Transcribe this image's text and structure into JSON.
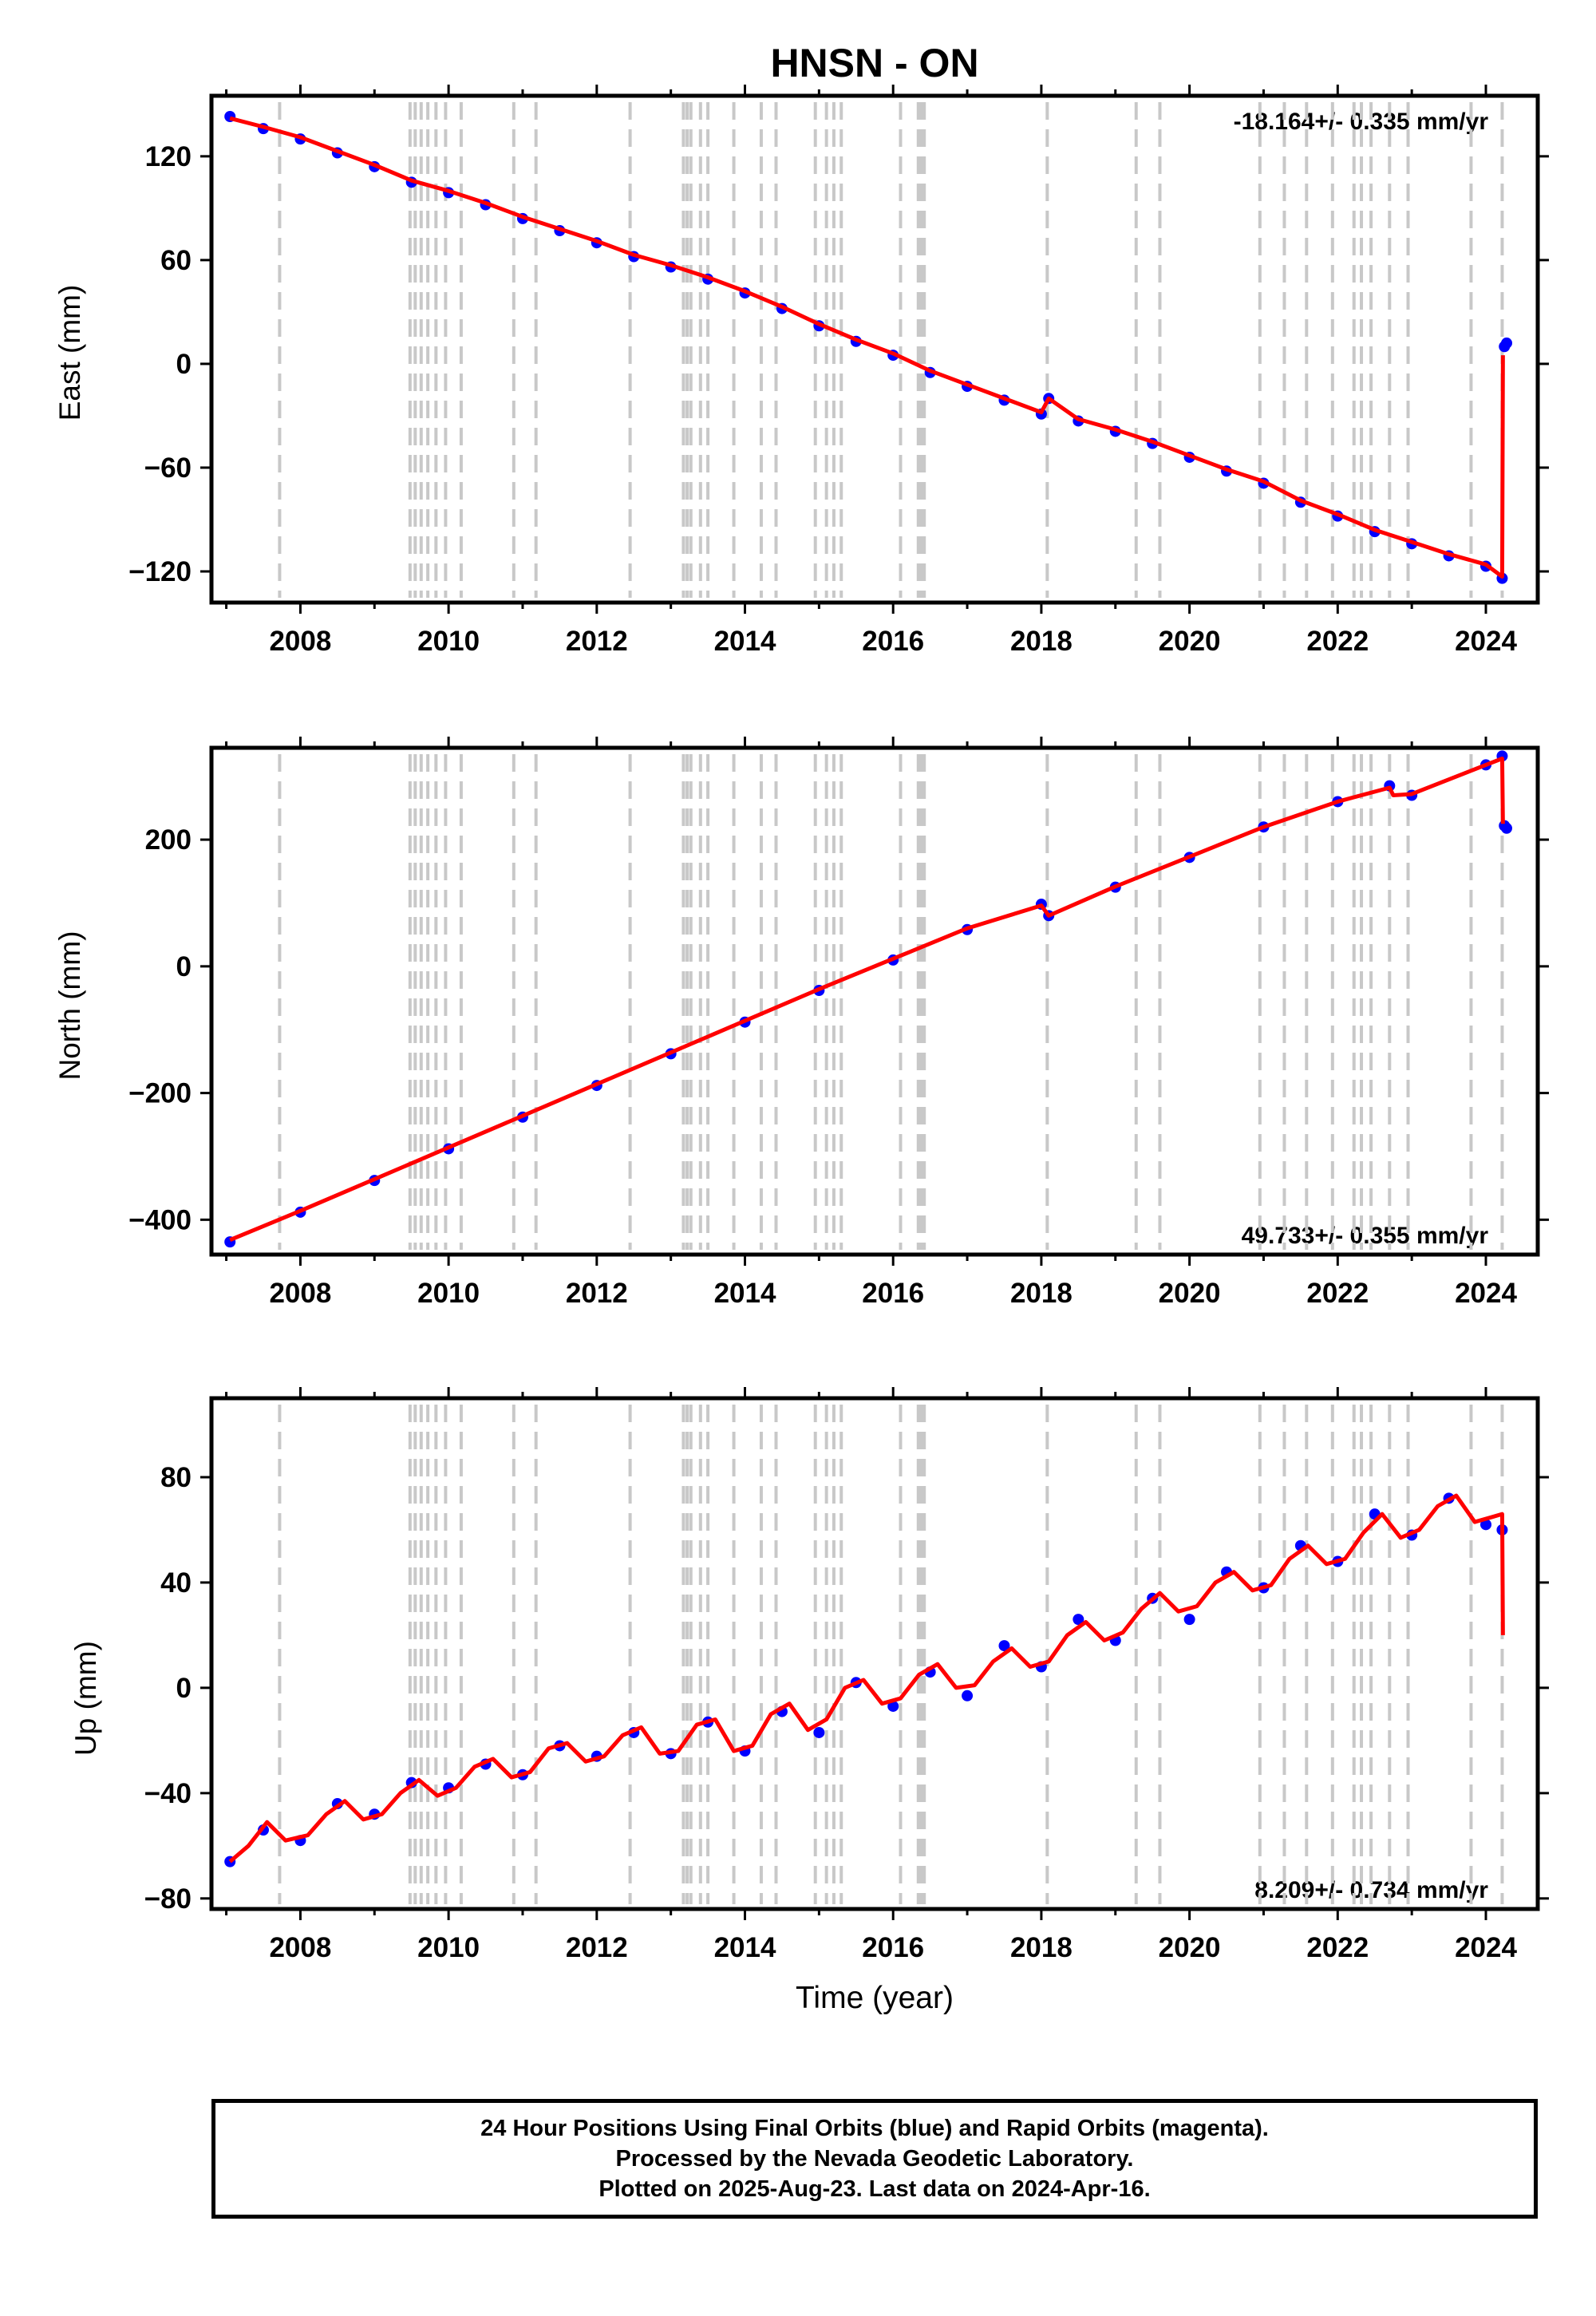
{
  "figure": {
    "title": "HNSN - ON",
    "xlabel": "Time (year)"
  },
  "footer": {
    "lines": [
      "24 Hour Positions Using Final Orbits (blue) and Rapid Orbits (magenta).",
      "Processed by the Nevada Geodetic Laboratory.",
      "Plotted on 2025-Aug-23. Last data on 2024-Apr-16."
    ]
  },
  "colors": {
    "points": "#0000ff",
    "model": "#ff0000",
    "event_lines": "#c8c8c8"
  },
  "chart_data": [
    {
      "type": "scatter",
      "title": "HNSN - ON",
      "xlabel": "",
      "ylabel": "East (mm)",
      "xlim": [
        2006.8,
        2024.7
      ],
      "ylim": [
        -138,
        155
      ],
      "xticks": [
        2008,
        2010,
        2012,
        2014,
        2016,
        2018,
        2020,
        2022,
        2024
      ],
      "yticks": [
        -120,
        -60,
        0,
        60,
        120
      ],
      "ytick_labels": [
        "−120",
        "−60",
        "0",
        "60",
        "120"
      ],
      "rate_label": "-18.164+/- 0.335 mm/yr",
      "rate_position": "top-right",
      "grid": false,
      "series": [
        {
          "kind": "points",
          "x": [
            2007.05,
            2007.5,
            2008.0,
            2008.5,
            2009.0,
            2009.5,
            2010.0,
            2010.5,
            2011.0,
            2011.5,
            2012.0,
            2012.5,
            2013.0,
            2013.5,
            2014.0,
            2014.5,
            2015.0,
            2015.5,
            2016.0,
            2016.5,
            2017.0,
            2017.5,
            2018.0,
            2018.1,
            2018.5,
            2019.0,
            2019.5,
            2020.0,
            2020.5,
            2021.0,
            2021.5,
            2022.0,
            2022.5,
            2023.0,
            2023.5,
            2024.0,
            2024.22,
            2024.25,
            2024.28
          ],
          "y": [
            143,
            136,
            130,
            122,
            114,
            105,
            99,
            92,
            84,
            77,
            70,
            62,
            56,
            49,
            41,
            32,
            22,
            13,
            5,
            -5,
            -13,
            -21,
            -29,
            -20,
            -33,
            -39,
            -46,
            -54,
            -62,
            -69,
            -80,
            -88,
            -97,
            -104,
            -111,
            -117,
            -124,
            10,
            12
          ]
        },
        {
          "kind": "model",
          "x": [
            2007.05,
            2007.5,
            2008.0,
            2008.5,
            2009.0,
            2009.5,
            2010.0,
            2010.5,
            2011.0,
            2011.5,
            2012.0,
            2012.5,
            2013.0,
            2013.5,
            2014.0,
            2014.5,
            2015.0,
            2015.5,
            2016.0,
            2016.5,
            2017.0,
            2017.5,
            2018.0,
            2018.1,
            2018.5,
            2019.0,
            2019.5,
            2020.0,
            2020.5,
            2021.0,
            2021.5,
            2022.0,
            2022.5,
            2023.0,
            2023.5,
            2024.0,
            2024.22,
            2024.23
          ],
          "y": [
            142,
            137,
            131,
            123,
            115,
            106,
            100,
            93,
            85,
            78,
            71,
            63,
            57,
            50,
            42,
            33,
            23,
            14,
            6,
            -4,
            -12,
            -20,
            -28,
            -20,
            -32,
            -38,
            -45,
            -53,
            -61,
            -68,
            -79,
            -87,
            -96,
            -103,
            -110,
            -116,
            -123,
            5
          ]
        }
      ]
    },
    {
      "type": "scatter",
      "xlabel": "",
      "ylabel": "North (mm)",
      "xlim": [
        2006.8,
        2024.7
      ],
      "ylim": [
        -455,
        345
      ],
      "xticks": [
        2008,
        2010,
        2012,
        2014,
        2016,
        2018,
        2020,
        2022,
        2024
      ],
      "yticks": [
        -400,
        -200,
        0,
        200
      ],
      "ytick_labels": [
        "−400",
        "−200",
        "0",
        "200"
      ],
      "rate_label": "49.733+/- 0.355 mm/yr",
      "rate_position": "bottom-right",
      "grid": false,
      "series": [
        {
          "kind": "points",
          "x": [
            2007.05,
            2008.0,
            2009.0,
            2010.0,
            2011.0,
            2012.0,
            2013.0,
            2014.0,
            2015.0,
            2016.0,
            2017.0,
            2018.0,
            2018.1,
            2019.0,
            2020.0,
            2021.0,
            2022.0,
            2022.7,
            2023.0,
            2024.0,
            2024.22,
            2024.25,
            2024.28
          ],
          "y": [
            -435,
            -388,
            -338,
            -288,
            -238,
            -188,
            -138,
            -88,
            -38,
            10,
            58,
            98,
            80,
            125,
            172,
            220,
            260,
            285,
            270,
            318,
            332,
            222,
            218
          ]
        },
        {
          "kind": "model",
          "x": [
            2007.05,
            2008.0,
            2009.0,
            2010.0,
            2011.0,
            2012.0,
            2013.0,
            2014.0,
            2015.0,
            2016.0,
            2017.0,
            2018.0,
            2018.1,
            2019.0,
            2020.0,
            2021.0,
            2022.0,
            2022.7,
            2022.75,
            2023.0,
            2024.0,
            2024.22,
            2024.23
          ],
          "y": [
            -432,
            -386,
            -336,
            -286,
            -236,
            -186,
            -136,
            -86,
            -36,
            12,
            60,
            96,
            80,
            126,
            173,
            220,
            260,
            282,
            270,
            272,
            318,
            328,
            225
          ]
        }
      ]
    },
    {
      "type": "scatter",
      "xlabel": "Time (year)",
      "ylabel": "Up (mm)",
      "xlim": [
        2006.8,
        2024.7
      ],
      "ylim": [
        -84,
        110
      ],
      "xticks": [
        2008,
        2010,
        2012,
        2014,
        2016,
        2018,
        2020,
        2022,
        2024
      ],
      "yticks": [
        -80,
        -40,
        0,
        40,
        80
      ],
      "ytick_labels": [
        "−80",
        "−40",
        "0",
        "40",
        "80"
      ],
      "rate_label": "8.209+/- 0.734 mm/yr",
      "rate_position": "bottom-right",
      "grid": false,
      "series": [
        {
          "kind": "points",
          "x": [
            2007.05,
            2007.5,
            2008.0,
            2008.5,
            2009.0,
            2009.5,
            2010.0,
            2010.5,
            2011.0,
            2011.5,
            2012.0,
            2012.5,
            2013.0,
            2013.5,
            2014.0,
            2014.5,
            2015.0,
            2015.5,
            2016.0,
            2016.5,
            2017.0,
            2017.5,
            2018.0,
            2018.5,
            2019.0,
            2019.5,
            2020.0,
            2020.5,
            2021.0,
            2021.5,
            2022.0,
            2022.5,
            2023.0,
            2023.5,
            2024.0,
            2024.22
          ],
          "y": [
            -66,
            -54,
            -58,
            -44,
            -48,
            -36,
            -38,
            -29,
            -33,
            -22,
            -26,
            -17,
            -25,
            -13,
            -24,
            -9,
            -17,
            2,
            -7,
            6,
            -3,
            16,
            8,
            26,
            18,
            34,
            26,
            44,
            38,
            54,
            48,
            66,
            58,
            72,
            62,
            60
          ]
        },
        {
          "kind": "model",
          "x": [
            2007.05,
            2007.3,
            2007.55,
            2007.8,
            2008.1,
            2008.35,
            2008.6,
            2008.85,
            2009.1,
            2009.35,
            2009.6,
            2009.85,
            2010.1,
            2010.35,
            2010.6,
            2010.85,
            2011.1,
            2011.35,
            2011.6,
            2011.85,
            2012.1,
            2012.35,
            2012.6,
            2012.85,
            2013.1,
            2013.35,
            2013.6,
            2013.85,
            2014.1,
            2014.35,
            2014.6,
            2014.85,
            2015.1,
            2015.35,
            2015.6,
            2015.85,
            2016.1,
            2016.35,
            2016.6,
            2016.85,
            2017.1,
            2017.35,
            2017.6,
            2017.85,
            2018.1,
            2018.35,
            2018.6,
            2018.85,
            2019.1,
            2019.35,
            2019.6,
            2019.85,
            2020.1,
            2020.35,
            2020.6,
            2020.85,
            2021.1,
            2021.35,
            2021.6,
            2021.85,
            2022.1,
            2022.35,
            2022.6,
            2022.85,
            2023.1,
            2023.35,
            2023.6,
            2023.85,
            2024.1,
            2024.22,
            2024.23
          ],
          "y": [
            -66,
            -60,
            -51,
            -58,
            -56,
            -48,
            -43,
            -50,
            -48,
            -40,
            -35,
            -41,
            -38,
            -30,
            -27,
            -34,
            -32,
            -23,
            -21,
            -28,
            -26,
            -18,
            -15,
            -25,
            -24,
            -14,
            -12,
            -24,
            -22,
            -10,
            -6,
            -16,
            -12,
            0,
            3,
            -6,
            -4,
            5,
            9,
            0,
            1,
            10,
            15,
            8,
            10,
            20,
            25,
            18,
            21,
            30,
            36,
            29,
            31,
            40,
            44,
            37,
            39,
            49,
            54,
            47,
            49,
            59,
            66,
            57,
            60,
            69,
            73,
            63,
            65,
            66,
            20
          ]
        }
      ]
    }
  ],
  "event_years": [
    2007.72,
    2009.48,
    2009.55,
    2009.63,
    2009.72,
    2009.83,
    2009.96,
    2010.17,
    2010.88,
    2011.18,
    2012.45,
    2013.17,
    2013.22,
    2013.27,
    2013.4,
    2013.5,
    2013.85,
    2014.22,
    2014.42,
    2014.95,
    2015.1,
    2015.2,
    2015.3,
    2016.1,
    2016.34,
    2016.38,
    2016.42,
    2018.08,
    2019.28,
    2019.6,
    2020.95,
    2021.28,
    2021.58,
    2021.93,
    2022.22,
    2022.32,
    2022.45,
    2022.7,
    2022.95,
    2023.8,
    2024.22
  ]
}
